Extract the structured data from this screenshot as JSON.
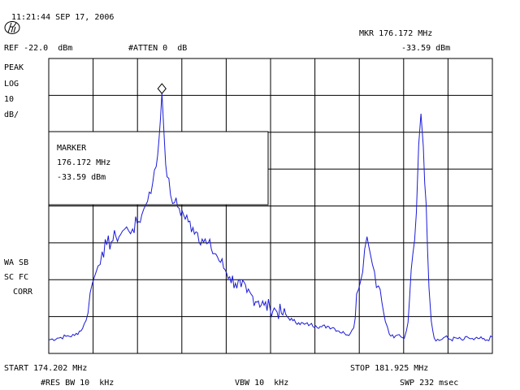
{
  "header": {
    "timestamp": "11:21:44 SEP 17, 2006",
    "ref_level": "REF -22.0  dBm",
    "attenuation": "#ATTEN 0  dB",
    "marker_readout": "MKR 176.172 MHz",
    "marker_level": "-33.59 dBm"
  },
  "left_panel": {
    "detector": "PEAK",
    "scale_mode": "LOG",
    "scale_value": "10",
    "scale_unit": "dB/",
    "flag_1": "WA SB",
    "flag_2": "SC FC",
    "flag_3": "CORR"
  },
  "marker_box": {
    "title": "MARKER",
    "frequency": "176.172 MHz",
    "level": "-33.59 dBm"
  },
  "footer": {
    "start": "START 174.202 MHz",
    "stop": "STOP 181.925 MHz",
    "rbw": "#RES BW 10  kHz",
    "vbw": "VBW 10  kHz",
    "sweep": "SWP 232 msec"
  },
  "colors": {
    "trace": "#1a1ad8",
    "grid": "#000000",
    "background": "#ffffff",
    "text": "#000000"
  },
  "icons": {
    "logo": "hp-logo-icon",
    "marker": "diamond-marker-icon"
  },
  "chart_data": {
    "type": "line",
    "x_unit": "MHz",
    "y_unit": "dBm",
    "xlim": [
      174.202,
      181.925
    ],
    "ylim": [
      -122.0,
      -22.0
    ],
    "grid": true,
    "marker": {
      "x": 176.172,
      "y": -33.59
    },
    "series": [
      {
        "points": [
          [
            174.202,
            -117.4
          ],
          [
            174.352,
            -116.8
          ],
          [
            174.502,
            -116.2
          ],
          [
            174.652,
            -115.9
          ],
          [
            174.792,
            -113.5
          ],
          [
            174.852,
            -110.8
          ],
          [
            174.922,
            -101.5
          ],
          [
            174.992,
            -96.3
          ],
          [
            175.062,
            -92.3
          ],
          [
            175.132,
            -87.5
          ],
          [
            175.212,
            -85.2
          ],
          [
            175.292,
            -84.1
          ],
          [
            175.372,
            -82.4
          ],
          [
            175.452,
            -81.7
          ],
          [
            175.522,
            -79.9
          ],
          [
            175.592,
            -80.4
          ],
          [
            175.662,
            -79.8
          ],
          [
            175.742,
            -77.9
          ],
          [
            175.822,
            -75.0
          ],
          [
            175.892,
            -71.6
          ],
          [
            175.952,
            -67.3
          ],
          [
            176.012,
            -64.1
          ],
          [
            176.072,
            -58.7
          ],
          [
            176.122,
            -49.4
          ],
          [
            176.172,
            -33.6
          ],
          [
            176.212,
            -48.6
          ],
          [
            176.262,
            -62.1
          ],
          [
            176.322,
            -68.3
          ],
          [
            176.392,
            -70.9
          ],
          [
            176.472,
            -72.8
          ],
          [
            176.552,
            -75.1
          ],
          [
            176.632,
            -77.4
          ],
          [
            176.712,
            -79.3
          ],
          [
            176.792,
            -81.1
          ],
          [
            176.872,
            -83.2
          ],
          [
            176.952,
            -84.8
          ],
          [
            177.032,
            -86.6
          ],
          [
            177.112,
            -88.3
          ],
          [
            177.192,
            -91.1
          ],
          [
            177.272,
            -93.6
          ],
          [
            177.352,
            -96.0
          ],
          [
            177.452,
            -98.2
          ],
          [
            177.552,
            -99.5
          ],
          [
            177.652,
            -101.3
          ],
          [
            177.752,
            -102.6
          ],
          [
            177.852,
            -104.2
          ],
          [
            177.952,
            -105.7
          ],
          [
            178.052,
            -106.5
          ],
          [
            178.152,
            -107.3
          ],
          [
            178.252,
            -108.4
          ],
          [
            178.352,
            -109.5
          ],
          [
            178.452,
            -110.9
          ],
          [
            178.552,
            -111.6
          ],
          [
            178.652,
            -112.1
          ],
          [
            178.752,
            -112.2
          ],
          [
            178.852,
            -112.6
          ],
          [
            178.952,
            -113.0
          ],
          [
            179.052,
            -112.8
          ],
          [
            179.152,
            -113.2
          ],
          [
            179.252,
            -114.4
          ],
          [
            179.352,
            -115.2
          ],
          [
            179.452,
            -115.2
          ],
          [
            179.512,
            -113.3
          ],
          [
            179.562,
            -101.8
          ],
          [
            179.632,
            -97.4
          ],
          [
            179.702,
            -86.7
          ],
          [
            179.742,
            -82.4
          ],
          [
            179.802,
            -88.4
          ],
          [
            179.872,
            -94.3
          ],
          [
            179.942,
            -99.1
          ],
          [
            180.002,
            -104.6
          ],
          [
            180.062,
            -111.2
          ],
          [
            180.132,
            -115.5
          ],
          [
            180.212,
            -116.7
          ],
          [
            180.302,
            -115.6
          ],
          [
            180.392,
            -116.9
          ],
          [
            180.432,
            -114.1
          ],
          [
            180.482,
            -103.7
          ],
          [
            180.542,
            -88.1
          ],
          [
            180.602,
            -74.1
          ],
          [
            180.642,
            -51.4
          ],
          [
            180.682,
            -40.7
          ],
          [
            180.722,
            -51.8
          ],
          [
            180.772,
            -71.3
          ],
          [
            180.822,
            -99.8
          ],
          [
            180.862,
            -111.0
          ],
          [
            180.912,
            -116.8
          ],
          [
            181.002,
            -117.6
          ],
          [
            181.102,
            -116.4
          ],
          [
            181.202,
            -117.3
          ],
          [
            181.302,
            -116.8
          ],
          [
            181.402,
            -117.5
          ],
          [
            181.502,
            -116.6
          ],
          [
            181.602,
            -117.4
          ],
          [
            181.702,
            -116.9
          ],
          [
            181.802,
            -117.6
          ],
          [
            181.925,
            -116.5
          ]
        ]
      }
    ]
  }
}
